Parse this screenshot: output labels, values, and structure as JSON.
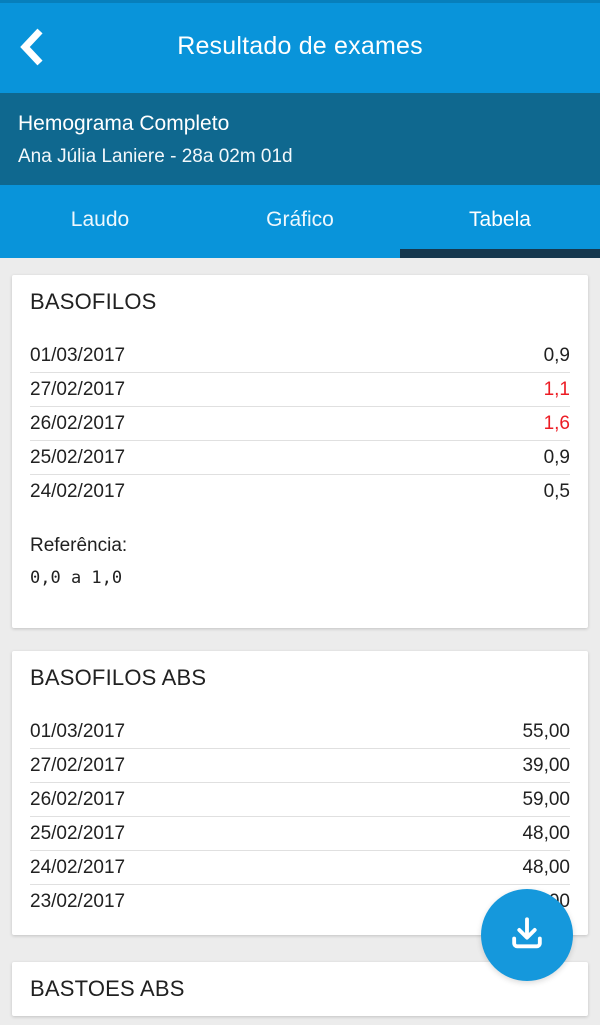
{
  "header": {
    "title": "Resultado de exames",
    "back_icon": "chevron-left"
  },
  "patient_bar": {
    "exam_name": "Hemograma Completo",
    "patient_info": "Ana Júlia Laniere - 28a 02m 01d"
  },
  "tabs": [
    {
      "label": "Laudo",
      "active": false
    },
    {
      "label": "Gráfico",
      "active": false
    },
    {
      "label": "Tabela",
      "active": true
    }
  ],
  "sections": [
    {
      "title": "BASOFILOS",
      "rows": [
        {
          "date": "01/03/2017",
          "value": "0,9",
          "abnormal": false
        },
        {
          "date": "27/02/2017",
          "value": "1,1",
          "abnormal": true
        },
        {
          "date": "26/02/2017",
          "value": "1,6",
          "abnormal": true
        },
        {
          "date": "25/02/2017",
          "value": "0,9",
          "abnormal": false
        },
        {
          "date": "24/02/2017",
          "value": "0,5",
          "abnormal": false
        }
      ],
      "reference_label": "Referência:",
      "reference_value": "0,0 a 1,0"
    },
    {
      "title": "BASOFILOS ABS",
      "rows": [
        {
          "date": "01/03/2017",
          "value": "55,00",
          "abnormal": false
        },
        {
          "date": "27/02/2017",
          "value": "39,00",
          "abnormal": false
        },
        {
          "date": "26/02/2017",
          "value": "59,00",
          "abnormal": false
        },
        {
          "date": "25/02/2017",
          "value": "48,00",
          "abnormal": false
        },
        {
          "date": "24/02/2017",
          "value": "48,00",
          "abnormal": false
        },
        {
          "date": "23/02/2017",
          "value": "40,00",
          "abnormal": false
        }
      ]
    },
    {
      "title": "BASTOES ABS",
      "rows": []
    }
  ],
  "fab": {
    "icon": "download"
  },
  "colors": {
    "header_blue": "#0994da",
    "subheader_blue": "#0f688f",
    "tab_underline_navy": "#16384e",
    "abnormal_red": "#ec1c24",
    "fab_blue": "#1598dc",
    "page_background": "#ececec"
  }
}
